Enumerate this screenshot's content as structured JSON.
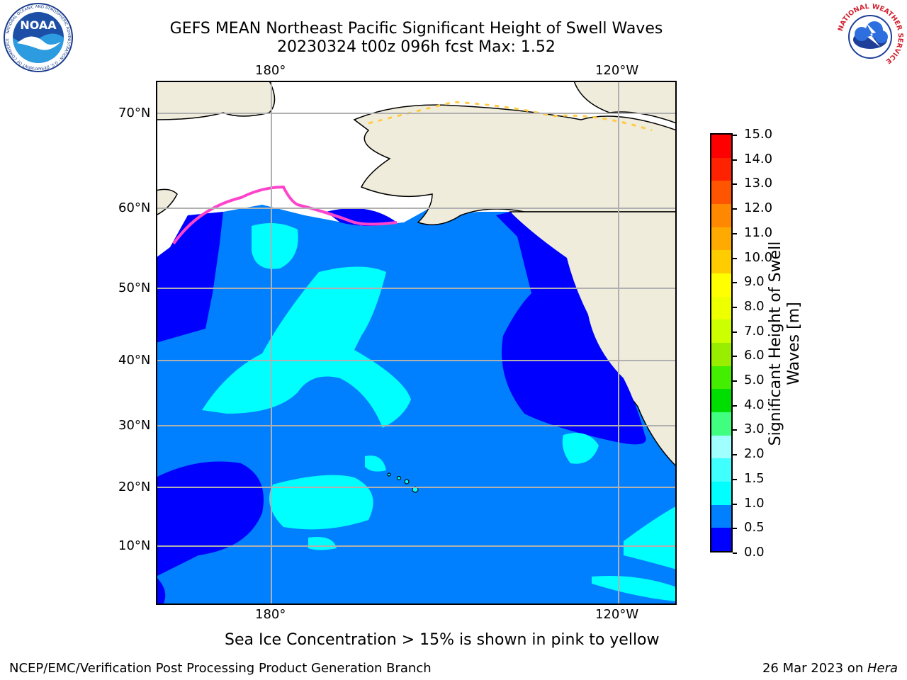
{
  "header": {
    "title_line1": "GEFS MEAN Northeast Pacific Significant Height of Swell Waves",
    "title_line2": "20230324 t00z 096h fcst   Max: 1.52"
  },
  "logos": {
    "left": {
      "icon": "noaa-logo",
      "text": "NOAA",
      "ring_text": "NATIONAL OCEANIC AND ATMOSPHERIC ADMINISTRATION · U.S. DEPARTMENT OF COMMERCE"
    },
    "right": {
      "icon": "nws-logo",
      "ring_text": "NATIONAL WEATHER SERVICE"
    }
  },
  "map": {
    "top_lon_labels": [
      "180°",
      "120°W"
    ],
    "bottom_lon_labels": [
      "180°",
      "120°W"
    ],
    "lat_labels": [
      "70°N",
      "60°N",
      "50°N",
      "40°N",
      "30°N",
      "20°N",
      "10°N"
    ],
    "colors": {
      "land": "#efecdc",
      "ice_free": "#ffffff",
      "grid": "#b0b0b0"
    }
  },
  "colorbar": {
    "label_line1": "Significant Height of Swell",
    "label_line2": "Waves [m]",
    "ticks": [
      "15.0",
      "14.0",
      "13.0",
      "12.0",
      "11.0",
      "10.0",
      "9.0",
      "8.0",
      "7.0",
      "6.0",
      "5.0",
      "4.0",
      "3.0",
      "2.0",
      "1.5",
      "1.0",
      "0.5",
      "0.0"
    ],
    "colors": [
      "#0000ff",
      "#0080ff",
      "#00ffff",
      "#40ffff",
      "#a0ffff",
      "#40ff80",
      "#00dd00",
      "#44ee00",
      "#99ee00",
      "#ccff00",
      "#eeff00",
      "#ffff00",
      "#ffcc00",
      "#ffaa00",
      "#ff8800",
      "#ff5500",
      "#ff2200",
      "#ff0000"
    ]
  },
  "footer": {
    "ice_note": "Sea Ice Concentration > 15% is shown in pink to yellow",
    "left": "NCEP/EMC/Verification Post Processing Product Generation Branch",
    "right_date": "26 Mar 2023 on ",
    "right_machine": "Hera"
  }
}
